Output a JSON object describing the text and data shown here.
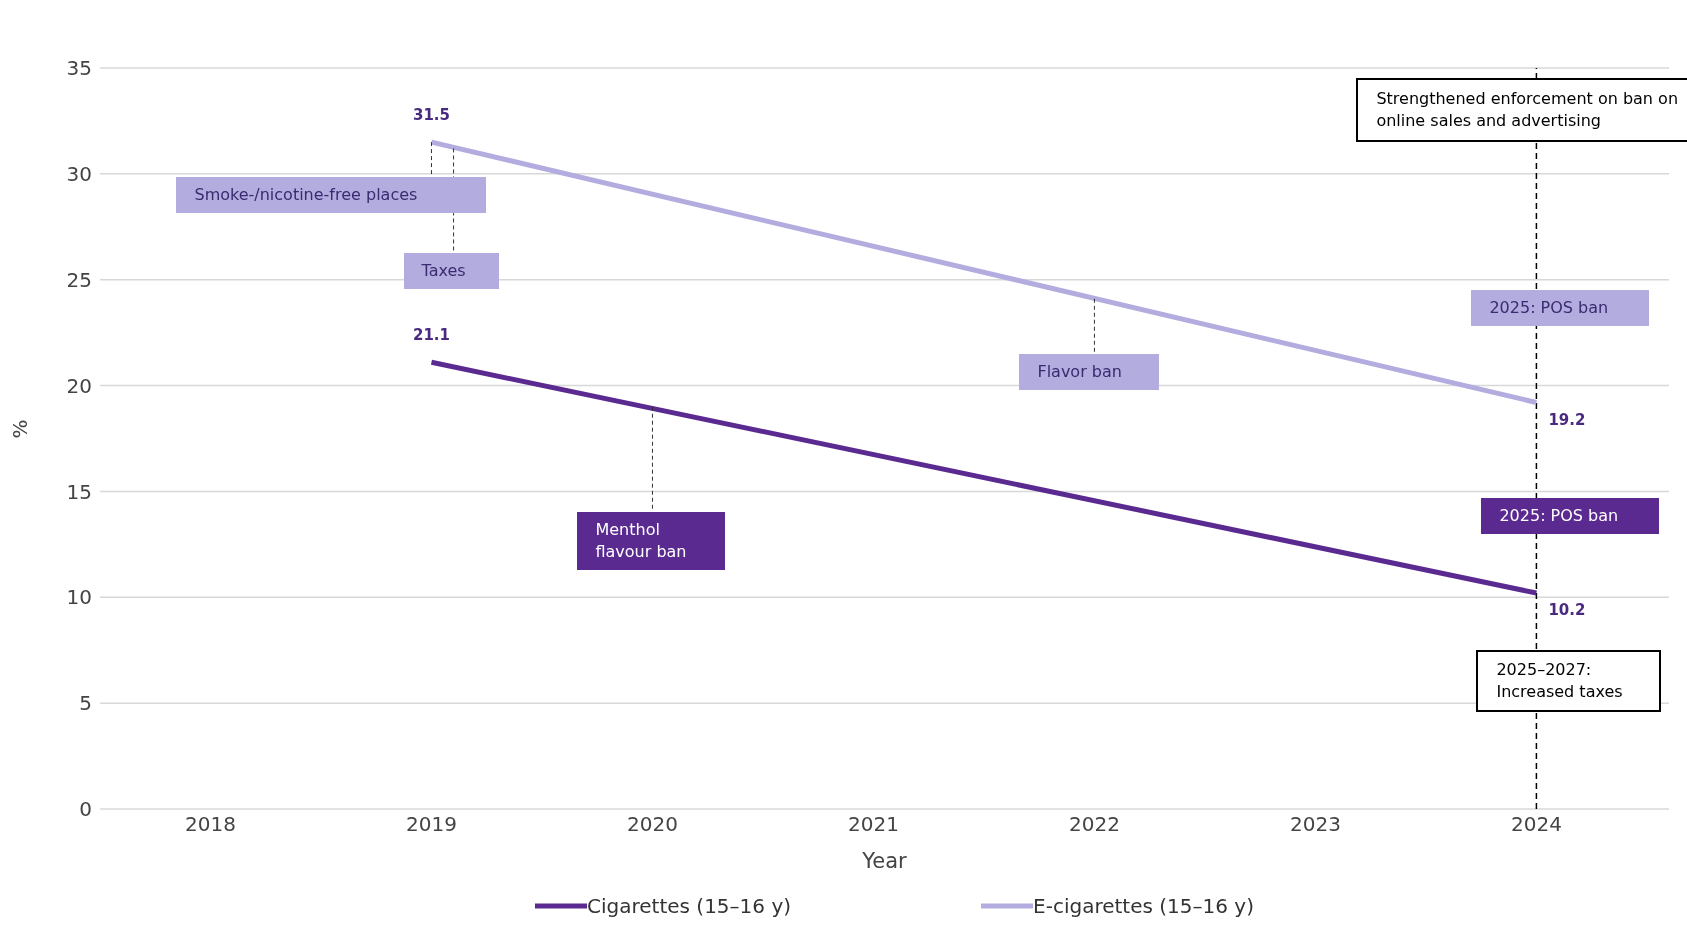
{
  "chart_data": {
    "type": "line",
    "xlabel": "Year",
    "ylabel": "%",
    "x": [
      2019,
      2024
    ],
    "series": [
      {
        "name": "Cigarettes (15–16 y)",
        "color": "#5b2a91",
        "values": [
          21.1,
          10.2
        ]
      },
      {
        "name": "E-cigarettes (15–16 y)",
        "color": "#b3acdf",
        "values": [
          31.5,
          19.2
        ]
      }
    ],
    "xlim": [
      2017.5,
      2024.6
    ],
    "xticks": [
      2018,
      2019,
      2020,
      2021,
      2022,
      2023,
      2024
    ],
    "ylim": [
      0,
      35
    ],
    "yticks": [
      0,
      5,
      10,
      15,
      20,
      25,
      30,
      35
    ],
    "grid": "y",
    "legend": "bottom",
    "marker": "none",
    "line_style": "solid",
    "data_labels": true,
    "ref_lines": [
      {
        "axis": "x",
        "value": 2024,
        "label": "Strengthened enforcement on ban on online sales and advertising",
        "color": "#000000",
        "line_style": "dashed"
      }
    ],
    "annotations": [
      {
        "text": "Smoke-/nicotine-free places",
        "x": 2019,
        "y": 31.5
      },
      {
        "text": "Taxes",
        "x": 2019.1,
        "y": 31.2
      },
      {
        "text": "Menthol flavour ban",
        "x": 2020,
        "y": 19
      },
      {
        "text": "Flavor ban",
        "x": 2022,
        "y": 24.1
      },
      "2025: POS ban",
      "2025: POS ban",
      "2025–2027: Increased taxes"
    ]
  }
}
